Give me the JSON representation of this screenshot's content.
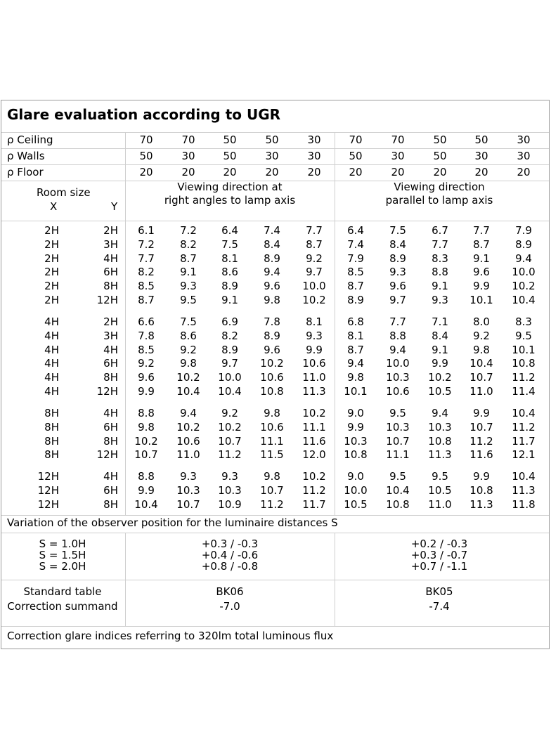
{
  "title": "Glare evaluation according to UGR",
  "reflectance": [
    {
      "label": "ρ Ceiling",
      "values": [
        "70",
        "70",
        "50",
        "50",
        "30",
        "70",
        "70",
        "50",
        "50",
        "30"
      ]
    },
    {
      "label": "ρ Walls",
      "values": [
        "50",
        "30",
        "50",
        "30",
        "30",
        "50",
        "30",
        "50",
        "30",
        "30"
      ]
    },
    {
      "label": "ρ Floor",
      "values": [
        "20",
        "20",
        "20",
        "20",
        "20",
        "20",
        "20",
        "20",
        "20",
        "20"
      ]
    }
  ],
  "header": {
    "room_size": "Room size",
    "x": "X",
    "y": "Y",
    "right_angles": [
      "Viewing direction at",
      "right angles to lamp axis"
    ],
    "parallel": [
      "Viewing direction",
      "parallel to lamp axis"
    ]
  },
  "groups": [
    [
      {
        "x": "2H",
        "y": "2H",
        "values": [
          "6.1",
          "7.2",
          "6.4",
          "7.4",
          "7.7",
          "6.4",
          "7.5",
          "6.7",
          "7.7",
          "7.9"
        ]
      },
      {
        "x": "2H",
        "y": "3H",
        "values": [
          "7.2",
          "8.2",
          "7.5",
          "8.4",
          "8.7",
          "7.4",
          "8.4",
          "7.7",
          "8.7",
          "8.9"
        ]
      },
      {
        "x": "2H",
        "y": "4H",
        "values": [
          "7.7",
          "8.7",
          "8.1",
          "8.9",
          "9.2",
          "7.9",
          "8.9",
          "8.3",
          "9.1",
          "9.4"
        ]
      },
      {
        "x": "2H",
        "y": "6H",
        "values": [
          "8.2",
          "9.1",
          "8.6",
          "9.4",
          "9.7",
          "8.5",
          "9.3",
          "8.8",
          "9.6",
          "10.0"
        ]
      },
      {
        "x": "2H",
        "y": "8H",
        "values": [
          "8.5",
          "9.3",
          "8.9",
          "9.6",
          "10.0",
          "8.7",
          "9.6",
          "9.1",
          "9.9",
          "10.2"
        ]
      },
      {
        "x": "2H",
        "y": "12H",
        "values": [
          "8.7",
          "9.5",
          "9.1",
          "9.8",
          "10.2",
          "8.9",
          "9.7",
          "9.3",
          "10.1",
          "10.4"
        ]
      }
    ],
    [
      {
        "x": "4H",
        "y": "2H",
        "values": [
          "6.6",
          "7.5",
          "6.9",
          "7.8",
          "8.1",
          "6.8",
          "7.7",
          "7.1",
          "8.0",
          "8.3"
        ]
      },
      {
        "x": "4H",
        "y": "3H",
        "values": [
          "7.8",
          "8.6",
          "8.2",
          "8.9",
          "9.3",
          "8.1",
          "8.8",
          "8.4",
          "9.2",
          "9.5"
        ]
      },
      {
        "x": "4H",
        "y": "4H",
        "values": [
          "8.5",
          "9.2",
          "8.9",
          "9.6",
          "9.9",
          "8.7",
          "9.4",
          "9.1",
          "9.8",
          "10.1"
        ]
      },
      {
        "x": "4H",
        "y": "6H",
        "values": [
          "9.2",
          "9.8",
          "9.7",
          "10.2",
          "10.6",
          "9.4",
          "10.0",
          "9.9",
          "10.4",
          "10.8"
        ]
      },
      {
        "x": "4H",
        "y": "8H",
        "values": [
          "9.6",
          "10.2",
          "10.0",
          "10.6",
          "11.0",
          "9.8",
          "10.3",
          "10.2",
          "10.7",
          "11.2"
        ]
      },
      {
        "x": "4H",
        "y": "12H",
        "values": [
          "9.9",
          "10.4",
          "10.4",
          "10.8",
          "11.3",
          "10.1",
          "10.6",
          "10.5",
          "11.0",
          "11.4"
        ]
      }
    ],
    [
      {
        "x": "8H",
        "y": "4H",
        "values": [
          "8.8",
          "9.4",
          "9.2",
          "9.8",
          "10.2",
          "9.0",
          "9.5",
          "9.4",
          "9.9",
          "10.4"
        ]
      },
      {
        "x": "8H",
        "y": "6H",
        "values": [
          "9.8",
          "10.2",
          "10.2",
          "10.6",
          "11.1",
          "9.9",
          "10.3",
          "10.3",
          "10.7",
          "11.2"
        ]
      },
      {
        "x": "8H",
        "y": "8H",
        "values": [
          "10.2",
          "10.6",
          "10.7",
          "11.1",
          "11.6",
          "10.3",
          "10.7",
          "10.8",
          "11.2",
          "11.7"
        ]
      },
      {
        "x": "8H",
        "y": "12H",
        "values": [
          "10.7",
          "11.0",
          "11.2",
          "11.5",
          "12.0",
          "10.8",
          "11.1",
          "11.3",
          "11.6",
          "12.1"
        ]
      }
    ],
    [
      {
        "x": "12H",
        "y": "4H",
        "values": [
          "8.8",
          "9.3",
          "9.3",
          "9.8",
          "10.2",
          "9.0",
          "9.5",
          "9.5",
          "9.9",
          "10.4"
        ]
      },
      {
        "x": "12H",
        "y": "6H",
        "values": [
          "9.9",
          "10.3",
          "10.3",
          "10.7",
          "11.2",
          "10.0",
          "10.4",
          "10.5",
          "10.8",
          "11.3"
        ]
      },
      {
        "x": "12H",
        "y": "8H",
        "values": [
          "10.4",
          "10.7",
          "10.9",
          "11.2",
          "11.7",
          "10.5",
          "10.8",
          "11.0",
          "11.3",
          "11.8"
        ]
      }
    ]
  ],
  "variation": {
    "label": "Variation of the observer position for the luminaire distances S",
    "rows": [
      {
        "s": "S = 1.0H",
        "right": "+0.3 / -0.3",
        "parallel": "+0.2 / -0.3"
      },
      {
        "s": "S = 1.5H",
        "right": "+0.4 / -0.6",
        "parallel": "+0.3 / -0.7"
      },
      {
        "s": "S = 2.0H",
        "right": "+0.8 / -0.8",
        "parallel": "+0.7 / -1.1"
      }
    ]
  },
  "standard": {
    "label": "Standard table",
    "correction_label": "Correction summand",
    "right_table": "BK06",
    "right_correction": "-7.0",
    "parallel_table": "BK05",
    "parallel_correction": "-7.4"
  },
  "footer": "Correction glare indices referring to 320lm total luminous flux"
}
